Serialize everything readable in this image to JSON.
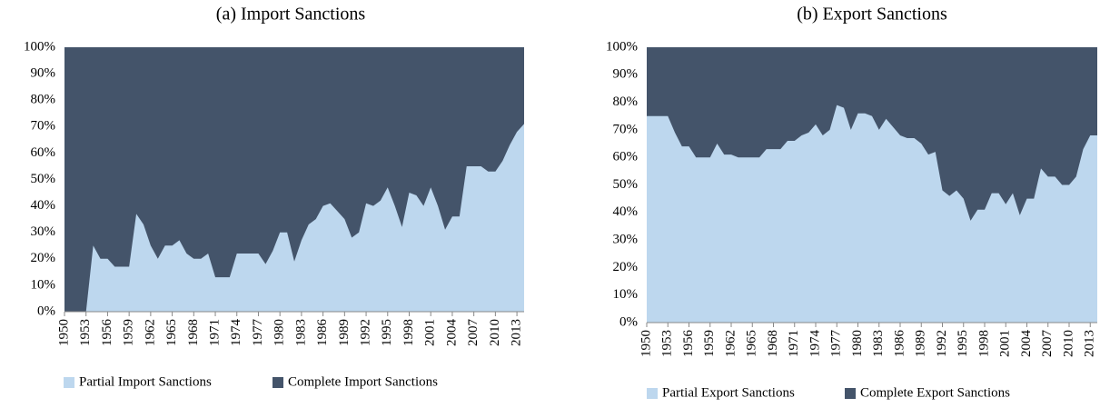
{
  "chart_data": [
    {
      "type": "stacked-area",
      "title": "(a) Import Sanctions",
      "x": [
        1950,
        1951,
        1952,
        1953,
        1954,
        1955,
        1956,
        1957,
        1958,
        1959,
        1960,
        1961,
        1962,
        1963,
        1964,
        1965,
        1966,
        1967,
        1968,
        1969,
        1970,
        1971,
        1972,
        1973,
        1974,
        1975,
        1976,
        1977,
        1978,
        1979,
        1980,
        1981,
        1982,
        1983,
        1984,
        1985,
        1986,
        1987,
        1988,
        1989,
        1990,
        1991,
        1992,
        1993,
        1994,
        1995,
        1996,
        1997,
        1998,
        1999,
        2000,
        2001,
        2002,
        2003,
        2004,
        2005,
        2006,
        2007,
        2008,
        2009,
        2010,
        2011,
        2012,
        2013,
        2014
      ],
      "xlim": [
        1950,
        2014
      ],
      "xticks": [
        1950,
        1953,
        1956,
        1959,
        1962,
        1965,
        1968,
        1971,
        1974,
        1977,
        1980,
        1983,
        1986,
        1989,
        1992,
        1995,
        1998,
        2001,
        2004,
        2007,
        2010,
        2013
      ],
      "ylim": [
        0,
        100
      ],
      "yticks": [
        {
          "value": 0,
          "label": "0%"
        },
        {
          "value": 10,
          "label": "10%"
        },
        {
          "value": 20,
          "label": "20%"
        },
        {
          "value": 30,
          "label": "30%"
        },
        {
          "value": 40,
          "label": "40%"
        },
        {
          "value": 50,
          "label": "50%"
        },
        {
          "value": 60,
          "label": "60%"
        },
        {
          "value": 70,
          "label": "70%"
        },
        {
          "value": 80,
          "label": "80%"
        },
        {
          "value": 90,
          "label": "90%"
        },
        {
          "value": 100,
          "label": "100%"
        }
      ],
      "series": [
        {
          "name": "Partial Import Sanctions",
          "color": "#bdd7ee",
          "values": [
            0,
            0,
            0,
            0,
            25,
            20,
            20,
            17,
            17,
            17,
            37,
            33,
            25,
            20,
            25,
            25,
            27,
            22,
            20,
            20,
            22,
            13,
            13,
            13,
            22,
            22,
            22,
            22,
            18,
            23,
            30,
            30,
            19,
            27,
            33,
            35,
            40,
            41,
            38,
            35,
            28,
            30,
            41,
            40,
            42,
            47,
            40,
            32,
            45,
            44,
            40,
            47,
            40,
            31,
            36,
            36,
            55,
            55,
            55,
            53,
            53,
            57,
            63,
            68,
            71
          ]
        },
        {
          "name": "Complete Import Sanctions",
          "color": "#44546a",
          "values": [
            100,
            100,
            100,
            100,
            75,
            80,
            80,
            83,
            83,
            83,
            63,
            67,
            75,
            80,
            75,
            75,
            73,
            78,
            80,
            80,
            78,
            87,
            87,
            87,
            78,
            78,
            78,
            78,
            82,
            77,
            70,
            70,
            81,
            73,
            67,
            65,
            60,
            59,
            62,
            65,
            72,
            70,
            59,
            60,
            58,
            53,
            60,
            68,
            55,
            56,
            60,
            53,
            60,
            69,
            64,
            64,
            45,
            45,
            45,
            47,
            47,
            43,
            37,
            32,
            29
          ]
        }
      ]
    },
    {
      "type": "stacked-area",
      "title": "(b) Export Sanctions",
      "x": [
        1950,
        1951,
        1952,
        1953,
        1954,
        1955,
        1956,
        1957,
        1958,
        1959,
        1960,
        1961,
        1962,
        1963,
        1964,
        1965,
        1966,
        1967,
        1968,
        1969,
        1970,
        1971,
        1972,
        1973,
        1974,
        1975,
        1976,
        1977,
        1978,
        1979,
        1980,
        1981,
        1982,
        1983,
        1984,
        1985,
        1986,
        1987,
        1988,
        1989,
        1990,
        1991,
        1992,
        1993,
        1994,
        1995,
        1996,
        1997,
        1998,
        1999,
        2000,
        2001,
        2002,
        2003,
        2004,
        2005,
        2006,
        2007,
        2008,
        2009,
        2010,
        2011,
        2012,
        2013,
        2014
      ],
      "xlim": [
        1950,
        2014
      ],
      "xticks": [
        1950,
        1953,
        1956,
        1959,
        1962,
        1965,
        1968,
        1971,
        1974,
        1977,
        1980,
        1983,
        1986,
        1989,
        1992,
        1995,
        1998,
        2001,
        2004,
        2007,
        2010,
        2013
      ],
      "ylim": [
        0,
        100
      ],
      "yticks": [
        {
          "value": 0,
          "label": "0%"
        },
        {
          "value": 10,
          "label": "10%"
        },
        {
          "value": 20,
          "label": "20%"
        },
        {
          "value": 30,
          "label": "30%"
        },
        {
          "value": 40,
          "label": "40%"
        },
        {
          "value": 50,
          "label": "50%"
        },
        {
          "value": 60,
          "label": "60%"
        },
        {
          "value": 70,
          "label": "70%"
        },
        {
          "value": 80,
          "label": "80%"
        },
        {
          "value": 90,
          "label": "90%"
        },
        {
          "value": 100,
          "label": "100%"
        }
      ],
      "series": [
        {
          "name": "Partial Export Sanctions",
          "color": "#bdd7ee",
          "values": [
            75,
            75,
            75,
            75,
            69,
            64,
            64,
            60,
            60,
            60,
            65,
            61,
            61,
            60,
            60,
            60,
            60,
            63,
            63,
            63,
            66,
            66,
            68,
            69,
            72,
            68,
            70,
            79,
            78,
            70,
            76,
            76,
            75,
            70,
            74,
            71,
            68,
            67,
            67,
            65,
            61,
            62,
            48,
            46,
            48,
            45,
            37,
            41,
            41,
            47,
            47,
            43,
            47,
            39,
            45,
            45,
            56,
            53,
            53,
            50,
            50,
            53,
            63,
            68,
            68
          ]
        },
        {
          "name": "Complete Export Sanctions",
          "color": "#44546a",
          "values": [
            25,
            25,
            25,
            25,
            31,
            36,
            36,
            40,
            40,
            40,
            35,
            39,
            39,
            40,
            40,
            40,
            40,
            37,
            37,
            37,
            34,
            34,
            32,
            31,
            28,
            32,
            30,
            21,
            22,
            30,
            24,
            24,
            25,
            30,
            26,
            29,
            32,
            33,
            33,
            35,
            39,
            38,
            52,
            54,
            52,
            55,
            63,
            59,
            59,
            53,
            53,
            57,
            53,
            61,
            55,
            55,
            44,
            47,
            47,
            50,
            50,
            47,
            37,
            32,
            32
          ]
        }
      ]
    }
  ]
}
